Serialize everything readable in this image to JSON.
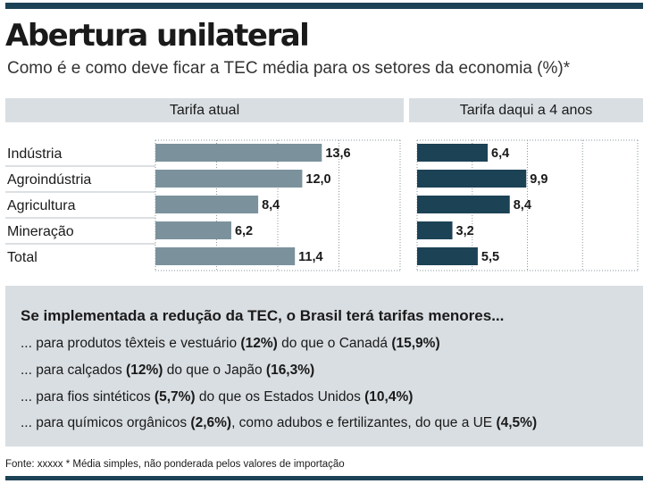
{
  "header": {
    "title": "Abertura unilateral",
    "subtitle": "Como é e como deve ficar a TEC média para os setores da economia (%)*"
  },
  "chart_data": {
    "type": "bar",
    "orientation": "horizontal",
    "categories": [
      "Indústria",
      "Agroindústria",
      "Agricultura",
      "Mineração",
      "Total"
    ],
    "series": [
      {
        "name": "Tarifa atual",
        "values": [
          13.6,
          12.0,
          8.4,
          6.2,
          11.4
        ],
        "labels": [
          "13,6",
          "12,0",
          "8,4",
          "6,2",
          "11,4"
        ]
      },
      {
        "name": "Tarifa daqui a 4 anos",
        "values": [
          6.4,
          9.9,
          8.4,
          3.2,
          5.5
        ],
        "labels": [
          "6,4",
          "9,9",
          "8,4",
          "3,2",
          "5,5"
        ]
      }
    ],
    "xlim": [
      0,
      20
    ],
    "grid": true
  },
  "colors": {
    "current": "#7b929c",
    "future": "#1c4256",
    "band": "#d9dee2"
  },
  "comparison": {
    "title": "Se implementada a redução da TEC, o Brasil terá tarifas menores...",
    "lines": [
      {
        "pre": "... para produtos têxteis e vestuário ",
        "val1": "(12%)",
        "mid": " do que o Canadá ",
        "val2": "(15,9%)"
      },
      {
        "pre": "... para calçados ",
        "val1": "(12%)",
        "mid": " do que o Japão ",
        "val2": "(16,3%)"
      },
      {
        "pre": "... para fios sintéticos ",
        "val1": "(5,7%)",
        "mid": " do que os Estados Unidos ",
        "val2": "(10,4%)"
      },
      {
        "pre": "... para químicos orgânicos ",
        "val1": "(2,6%)",
        "mid": ", como adubos e fertilizantes, do que a UE ",
        "val2": "(4,5%)"
      }
    ]
  },
  "footer": {
    "source": "Fonte: xxxxx * Média simples, não ponderada pelos valores de importação"
  }
}
